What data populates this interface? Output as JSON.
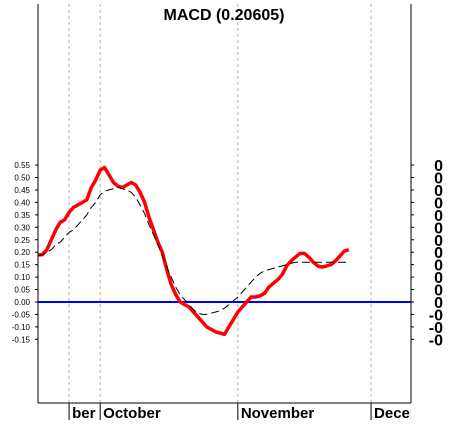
{
  "chart_data": {
    "type": "line",
    "title": "MACD (0.20605)",
    "xlabel": "",
    "ylabel": "",
    "ylim": [
      -0.17,
      0.6
    ],
    "grid": "vertical-dashed",
    "y_ticks": [
      "0.55",
      "0.50",
      "0.45",
      "0.40",
      "0.35",
      "0.30",
      "0.25",
      "0.20",
      "0.15",
      "0.10",
      "0.05",
      "0.00",
      "-0.05",
      "-0.10",
      "-0.15"
    ],
    "right_ticks": [
      "0",
      "0",
      "0",
      "0",
      "0",
      "0",
      "0",
      "0",
      "0",
      "0",
      "0",
      "0",
      "-0",
      "-0",
      "-0"
    ],
    "month_labels": [
      {
        "label": "ber",
        "day": -7
      },
      {
        "label": "October",
        "day": 0
      },
      {
        "label": "November",
        "day": 31
      },
      {
        "label": "December",
        "day": 61
      }
    ],
    "x": [
      -14,
      -13,
      -12,
      -11,
      -10,
      -9,
      -8,
      -7,
      -6,
      -5,
      -4,
      -3,
      -2,
      -1,
      0,
      1,
      2,
      3,
      4,
      5,
      6,
      7,
      8,
      9,
      10,
      11,
      12,
      13,
      14,
      15,
      16,
      17,
      18,
      19,
      20,
      21,
      22,
      23,
      24,
      25,
      26,
      27,
      28,
      29,
      30,
      31,
      32,
      33,
      34,
      35,
      36,
      37,
      38,
      39,
      40,
      41,
      42,
      43,
      44,
      45,
      46,
      47,
      48,
      49,
      50,
      51,
      52,
      53,
      54,
      55,
      56
    ],
    "series": [
      {
        "color": "#ff0000",
        "style": "solid",
        "values": [
          0.19,
          0.19,
          0.21,
          0.25,
          0.29,
          0.32,
          0.33,
          0.36,
          0.38,
          0.39,
          0.4,
          0.41,
          0.46,
          0.49,
          0.53,
          0.54,
          0.51,
          0.48,
          0.465,
          0.46,
          0.47,
          0.48,
          0.47,
          0.44,
          0.4,
          0.34,
          0.29,
          0.24,
          0.2,
          0.13,
          0.07,
          0.03,
          0.0,
          -0.01,
          -0.02,
          -0.04,
          -0.06,
          -0.08,
          -0.1,
          -0.11,
          -0.12,
          -0.125,
          -0.13,
          -0.1,
          -0.07,
          -0.04,
          -0.02,
          0.0,
          0.02,
          0.02,
          0.025,
          0.035,
          0.06,
          0.075,
          0.09,
          0.11,
          0.145,
          0.165,
          0.18,
          0.195,
          0.195,
          0.18,
          0.16,
          0.145,
          0.14,
          0.145,
          0.15,
          0.165,
          0.185,
          0.205,
          0.21
        ]
      },
      {
        "color": "#000000",
        "style": "dashed",
        "values": [
          0.185,
          0.19,
          0.2,
          0.21,
          0.23,
          0.24,
          0.26,
          0.28,
          0.29,
          0.31,
          0.33,
          0.35,
          0.38,
          0.4,
          0.43,
          0.445,
          0.45,
          0.455,
          0.46,
          0.455,
          0.45,
          0.44,
          0.42,
          0.39,
          0.355,
          0.31,
          0.27,
          0.23,
          0.185,
          0.14,
          0.1,
          0.06,
          0.03,
          0.01,
          -0.01,
          -0.03,
          -0.045,
          -0.05,
          -0.05,
          -0.045,
          -0.04,
          -0.035,
          -0.025,
          -0.01,
          0.005,
          0.02,
          0.04,
          0.06,
          0.08,
          0.1,
          0.115,
          0.125,
          0.13,
          0.135,
          0.14,
          0.145,
          0.15,
          0.155,
          0.16,
          0.16,
          0.16,
          0.16,
          0.16,
          0.16,
          0.16,
          0.16,
          0.16,
          0.16,
          0.16,
          0.16,
          0.16
        ]
      }
    ],
    "zero_line": {
      "value": 0,
      "color": "#0000ff"
    }
  }
}
